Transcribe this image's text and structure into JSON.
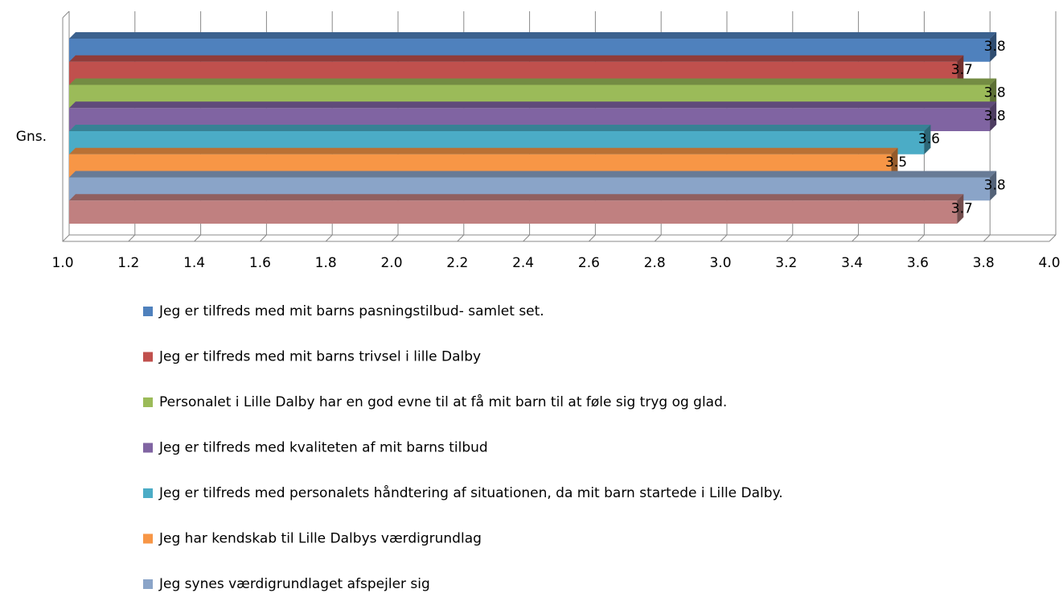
{
  "chart_data": {
    "type": "bar",
    "orientation": "horizontal",
    "categories": [
      "Gns."
    ],
    "series": [
      {
        "name": "Jeg er tilfreds med mit barns pasningstilbud- samlet set.",
        "color": "#4f81bd",
        "values": [
          3.8
        ]
      },
      {
        "name": "Jeg er tilfreds med mit barns trivsel i lille Dalby",
        "color": "#c0504d",
        "values": [
          3.7
        ]
      },
      {
        "name": "Personalet i Lille Dalby har en god evne til at få mit barn til at føle sig tryg og glad.",
        "color": "#9bbb59",
        "values": [
          3.8
        ]
      },
      {
        "name": "Jeg er tilfreds med kvaliteten af mit barns tilbud",
        "color": "#8064a2",
        "values": [
          3.8
        ]
      },
      {
        "name": "Jeg er tilfreds med personalets håndtering af situationen, da mit barn startede i Lille Dalby.",
        "color": "#4bacc6",
        "values": [
          3.6
        ]
      },
      {
        "name": "Jeg har kendskab til Lille Dalbys værdigrundlag",
        "color": "#f79646",
        "values": [
          3.5
        ]
      },
      {
        "name": "Jeg synes værdigrundlaget afspejler sig",
        "color": "#8aa4c8",
        "values": [
          3.8
        ]
      },
      {
        "color": "#c08080",
        "values": [
          3.7
        ]
      }
    ],
    "xlim": [
      1,
      4
    ],
    "xticks": [
      {
        "value": 1,
        "label": "1.0"
      },
      1.2,
      1.4,
      1.6,
      1.8,
      {
        "value": 2,
        "label": "2.0"
      },
      2.2,
      2.4,
      2.6,
      2.8,
      {
        "value": 3,
        "label": "3.0"
      },
      3.2,
      3.4,
      3.6,
      3.8,
      {
        "value": 4,
        "label": "4.0"
      }
    ],
    "grid": true,
    "legend": "bottom"
  }
}
